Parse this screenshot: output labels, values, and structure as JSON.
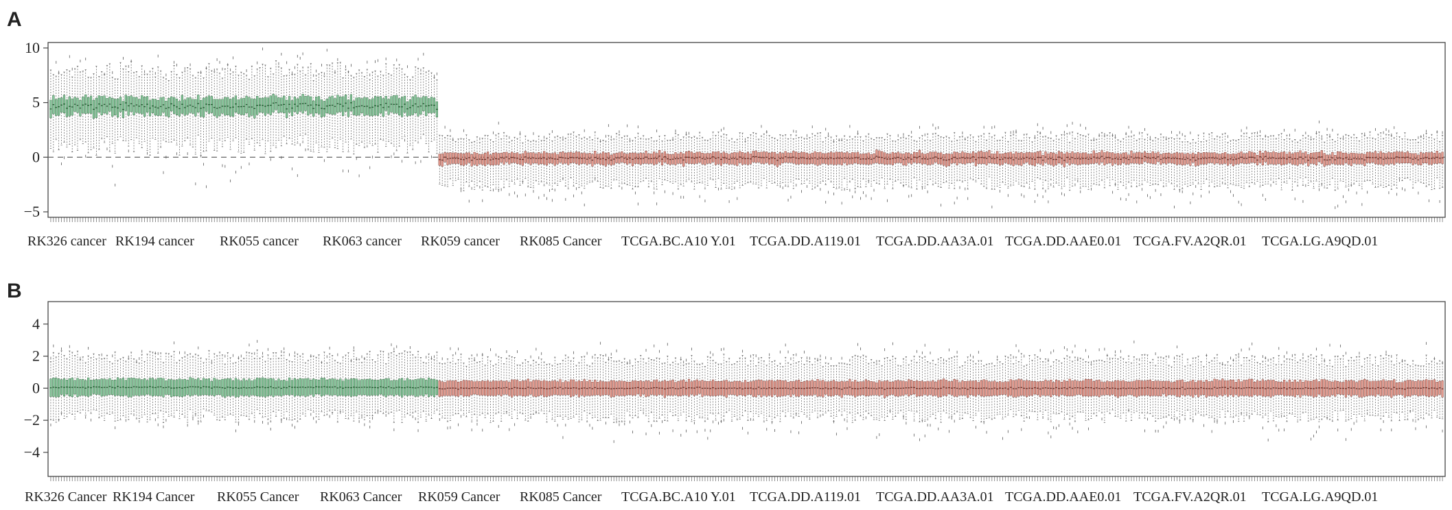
{
  "figure": {
    "panels": [
      "A",
      "B"
    ]
  },
  "colors": {
    "group1_fill": "#86c49a",
    "group1_median": "#1f5a2e",
    "group2_fill": "#e39a8e",
    "group2_median": "#6a2a22",
    "whisker": "#555555",
    "axis": "#444444",
    "zero_line": "#666666"
  },
  "chart_data": [
    {
      "panel": "A",
      "type": "boxplot",
      "title": "",
      "xlabel": "",
      "ylabel": "",
      "ylim": [
        -5.5,
        10.5
      ],
      "yticks": [
        -5,
        0,
        5,
        10
      ],
      "yticklabels": [
        "−5",
        "0",
        "5",
        "10"
      ],
      "reference_line": 0,
      "grid": false,
      "series": [
        {
          "n_samples": 145,
          "median_mean": 4.7,
          "q1_mean": 3.9,
          "q3_mean": 5.4,
          "whisker_low_mean": 1.2,
          "whisker_high_mean": 7.8,
          "min": -4.3,
          "max": 10.2
        },
        {
          "n_samples": 375,
          "median_mean": -0.1,
          "q1_mean": -0.6,
          "q3_mean": 0.4,
          "whisker_low_mean": -2.4,
          "whisker_high_mean": 1.8,
          "min": -5.1,
          "max": 3.4
        }
      ],
      "xticklabels": [
        "RK326 cancer",
        "RK194 cancer",
        "RK055 cancer",
        "RK063 cancer",
        "RK059 cancer",
        "RK085 Cancer",
        "TCGA.BC.A10 Y.01",
        "TCGA.DD.A119.01",
        "TCGA.DD.AA3A.01",
        "TCGA.DD.AAE0.01",
        "TCGA.FV.A2QR.01",
        "TCGA.LG.A9QD.01"
      ]
    },
    {
      "panel": "B",
      "type": "boxplot",
      "title": "",
      "xlabel": "",
      "ylabel": "",
      "ylim": [
        -5.5,
        5.4
      ],
      "yticks": [
        -4,
        -2,
        0,
        2,
        4
      ],
      "yticklabels": [
        "−4",
        "−2",
        "0",
        "2",
        "4"
      ],
      "reference_line": null,
      "grid": false,
      "series": [
        {
          "n_samples": 145,
          "median_mean": 0.05,
          "q1_mean": -0.45,
          "q3_mean": 0.55,
          "whisker_low_mean": -1.7,
          "whisker_high_mean": 1.9,
          "min": -2.6,
          "max": 2.8
        },
        {
          "n_samples": 375,
          "median_mean": 0.0,
          "q1_mean": -0.45,
          "q3_mean": 0.45,
          "whisker_low_mean": -1.7,
          "whisker_high_mean": 1.7,
          "min": -3.8,
          "max": 3.3
        }
      ],
      "xticklabels": [
        "RK326 Cancer",
        "RK194 Cancer",
        "RK055 Cancer",
        "RK063 Cancer",
        "RK059 Cancer",
        "RK085 Cancer",
        "TCGA.BC.A10 Y.01",
        "TCGA.DD.A119.01",
        "TCGA.DD.AA3A.01",
        "TCGA.DD.AAE0.01",
        "TCGA.FV.A2QR.01",
        "TCGA.LG.A9QD.01"
      ]
    }
  ]
}
